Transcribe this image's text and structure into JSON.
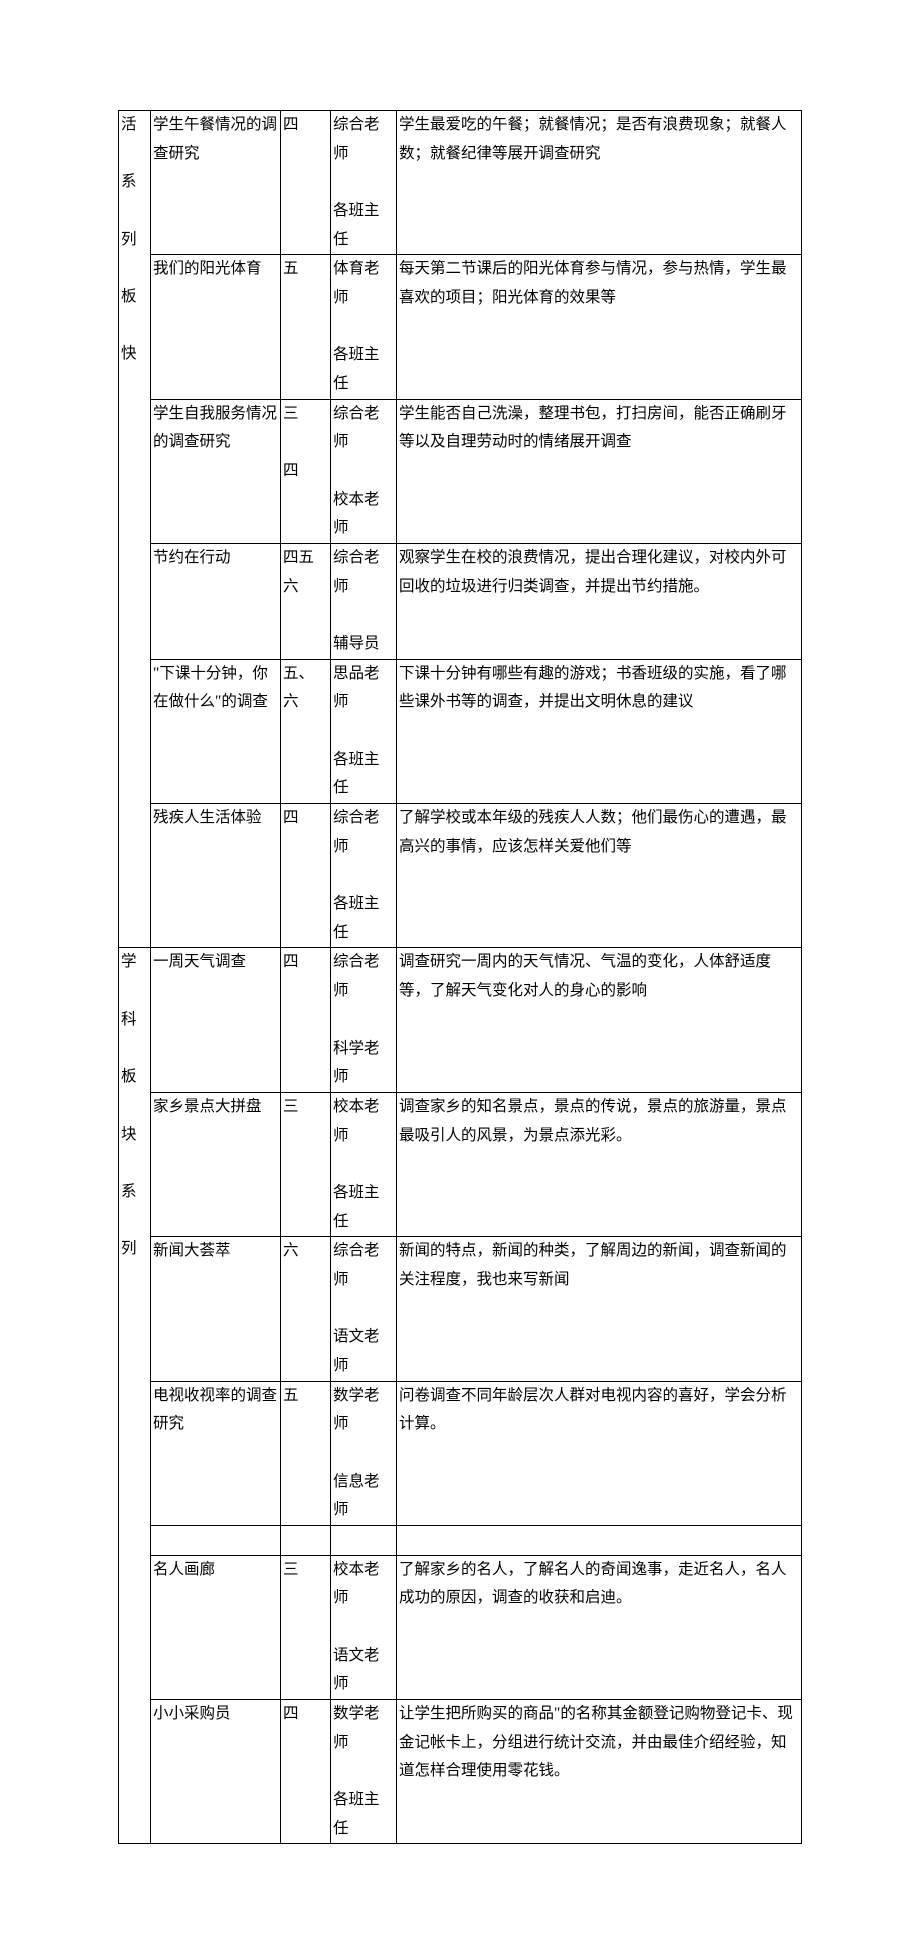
{
  "sections": [
    {
      "category_chars": [
        "活",
        "",
        "系",
        "",
        "列",
        "",
        "板",
        "",
        "快"
      ],
      "rows": [
        {
          "topic": "学生午餐情况的调查研究",
          "grade": "四",
          "teacher_lines": [
            "综合老师",
            "",
            "各班主任"
          ],
          "desc": "学生最爱吃的午餐；就餐情况；是否有浪费现象；就餐人数；就餐纪律等展开调查研究"
        },
        {
          "topic": "我们的阳光体育",
          "grade": "五",
          "teacher_lines": [
            "体育老师",
            "",
            "各班主任"
          ],
          "desc": "每天第二节课后的阳光体育参与情况，参与热情，学生最喜欢的项目；阳光体育的效果等"
        },
        {
          "topic": "学生自我服务情况的调查研究",
          "grade_lines": [
            "三",
            "",
            "四"
          ],
          "teacher_lines": [
            "综合老师",
            "",
            "校本老师"
          ],
          "desc": "学生能否自己洗澡，整理书包，打扫房间，能否正确刷牙等以及自理劳动时的情绪展开调查"
        },
        {
          "topic": "节约在行动",
          "grade_lines": [
            "四五",
            "六"
          ],
          "teacher_lines": [
            "综合老师",
            "",
            "辅导员"
          ],
          "desc": "观察学生在校的浪费情况，提出合理化建议，对校内外可回收的垃圾进行归类调查，并提出节约措施。"
        },
        {
          "topic": "\"下课十分钟，你在做什么\"的调查",
          "grade": "五、六",
          "teacher_lines": [
            "思品老师",
            "",
            "各班主任"
          ],
          "desc": "下课十分钟有哪些有趣的游戏；书香班级的实施，看了哪些课外书等的调查，并提出文明休息的建议"
        },
        {
          "topic": "残疾人生活体验",
          "grade": "四",
          "teacher_lines": [
            "综合老师",
            "",
            "各班主任"
          ],
          "desc": "了解学校或本年级的残疾人人数；他们最伤心的遭遇，最高兴的事情，应该怎样关爱他们等"
        }
      ]
    },
    {
      "category_chars": [
        "学",
        "",
        "科",
        "",
        "板",
        "",
        "块",
        "",
        "系",
        "",
        "列"
      ],
      "rows": [
        {
          "topic": "一周天气调查",
          "grade": "四",
          "teacher_lines": [
            "综合老师",
            "",
            "科学老师"
          ],
          "desc": "调查研究一周内的天气情况、气温的变化，人体舒适度等，了解天气变化对人的身心的影响"
        },
        {
          "topic": "家乡景点大拼盘",
          "grade": "三",
          "teacher_lines": [
            "校本老师",
            "",
            "各班主任"
          ],
          "desc": "调查家乡的知名景点，景点的传说，景点的旅游量，景点最吸引人的风景，为景点添光彩。"
        },
        {
          "topic": "新闻大荟萃",
          "grade": "六",
          "teacher_lines": [
            "综合老师",
            "",
            "语文老师"
          ],
          "desc": "新闻的特点，新闻的种类，了解周边的新闻，调查新闻的关注程度，我也来写新闻"
        },
        {
          "topic": "电视收视率的调查研究",
          "grade": "五",
          "teacher_lines": [
            "数学老师",
            "",
            "信息老师"
          ],
          "desc": "问卷调查不同年龄层次人群对电视内容的喜好，学会分析计算。"
        },
        {
          "empty": true
        },
        {
          "topic": "名人画廊",
          "grade": "三",
          "teacher_lines": [
            "校本老师",
            "",
            "语文老师"
          ],
          "desc": "了解家乡的名人，了解名人的奇闻逸事，走近名人，名人成功的原因，调查的收获和启迪。"
        },
        {
          "topic": "小小采购员",
          "grade": "四",
          "teacher_lines": [
            "数学老师",
            "",
            "各班主任"
          ],
          "desc": "让学生把所购买的商品\"的名称其金额登记购物登记卡、现金记帐卡上，分组进行统计交流，并由最佳介绍经验，知道怎样合理使用零花钱。"
        }
      ]
    }
  ]
}
